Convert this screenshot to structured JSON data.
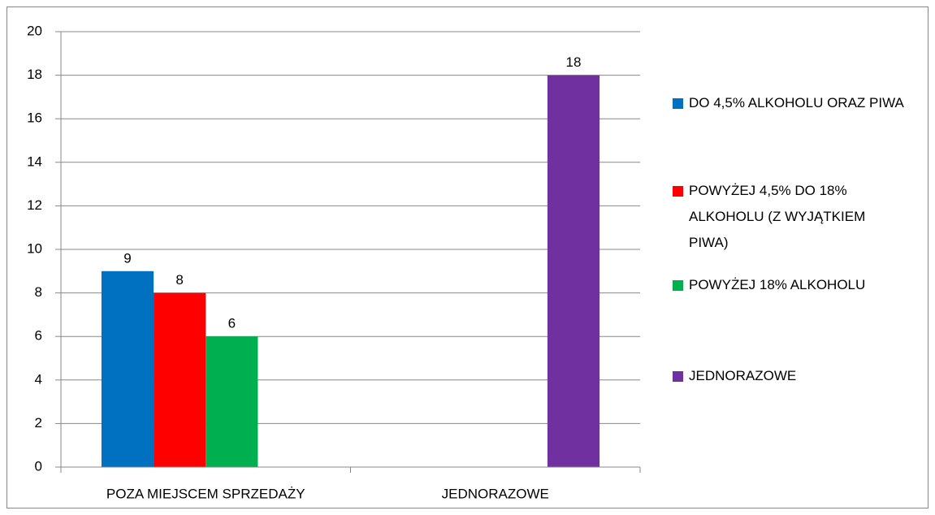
{
  "chart_data": {
    "type": "bar",
    "categories": [
      "POZA MIEJSCEM SPRZEDAŻY",
      "JEDNORAZOWE"
    ],
    "series": [
      {
        "name": "DO 4,5% ALKOHOLU ORAZ PIWA",
        "color": "#0070c0",
        "values": [
          9,
          null
        ]
      },
      {
        "name": "POWYŻEJ 4,5% DO 18% ALKOHOLU (Z WYJĄTKIEM PIWA)",
        "color": "#ff0000",
        "values": [
          8,
          null
        ]
      },
      {
        "name": "POWYŻEJ 18% ALKOHOLU",
        "color": "#00b050",
        "values": [
          6,
          null
        ]
      },
      {
        "name": "JEDNORAZOWE",
        "color": "#7030a0",
        "values": [
          null,
          18
        ]
      }
    ],
    "ylim": [
      0,
      20
    ],
    "yticks": [
      0,
      2,
      4,
      6,
      8,
      10,
      12,
      14,
      16,
      18,
      20
    ],
    "grid": true,
    "legend": "right"
  }
}
